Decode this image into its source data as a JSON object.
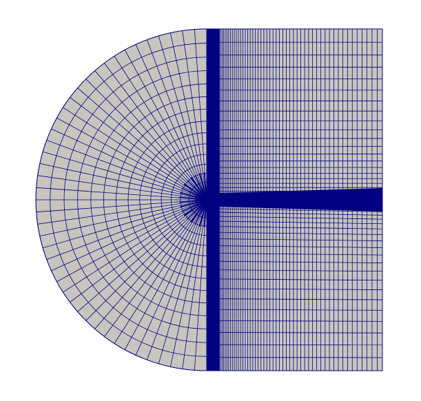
{
  "scene": {
    "background_color": "#ffffff",
    "mesh_fill_color": "#c8c5bf",
    "mesh_line_color": "#000080",
    "regions": [
      "semicircular-inlet-block",
      "rectangular-downstream-block"
    ],
    "features": [
      "dense-vertical-boundary-band",
      "dense-horizontal-wake-band",
      "radial-fan-at-leading-edge"
    ]
  }
}
